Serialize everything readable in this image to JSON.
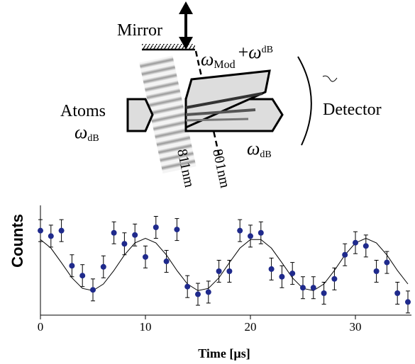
{
  "diagram": {
    "mirror": "Mirror",
    "atoms": "Atoms",
    "omega": "ω",
    "db": "dB",
    "mod": "Mod",
    "plus": "+",
    "detector": "Detector",
    "wavelength_1": "811nm",
    "wavelength_2": "801nm"
  },
  "chart_data": {
    "type": "scatter",
    "xlabel": "Time [µs]",
    "ylabel": "Counts",
    "xlim": [
      0,
      35
    ],
    "xticks": [
      0,
      10,
      20,
      30
    ],
    "ylim": [
      0,
      10
    ],
    "color": "#1f2a8c",
    "x": [
      0,
      1,
      2,
      3,
      4,
      5,
      6,
      7,
      8,
      9,
      10,
      11,
      12,
      13,
      14,
      15,
      16,
      17,
      18,
      19,
      20,
      21,
      22,
      23,
      24,
      25,
      26,
      27,
      28,
      29,
      30,
      31,
      32,
      33,
      34,
      35
    ],
    "values": [
      7.7,
      7.2,
      7.7,
      4.5,
      3.6,
      2.3,
      4.4,
      7.5,
      6.5,
      7.3,
      5.3,
      8.0,
      4.9,
      7.8,
      2.6,
      1.9,
      2.1,
      4.0,
      4.0,
      7.7,
      7.2,
      7.5,
      4.2,
      3.5,
      3.8,
      2.5,
      2.5,
      2.0,
      3.3,
      5.5,
      6.6,
      6.3,
      4.0,
      4.8,
      2.0,
      1.2
    ],
    "errors": [
      1.0,
      1.0,
      1.0,
      1.0,
      1.0,
      1.0,
      1.0,
      1.0,
      1.0,
      1.0,
      1.0,
      1.0,
      1.0,
      1.0,
      1.0,
      1.0,
      1.0,
      1.0,
      1.0,
      1.0,
      1.0,
      1.0,
      1.0,
      1.0,
      1.0,
      1.0,
      1.0,
      1.0,
      1.0,
      1.0,
      1.0,
      1.0,
      1.0,
      1.0,
      1.0,
      1.0
    ],
    "fit": {
      "x": [
        0,
        1,
        2,
        3,
        4,
        5,
        6,
        7,
        8,
        9,
        10,
        11,
        12,
        13,
        14,
        15,
        16,
        17,
        18,
        19,
        20,
        21,
        22,
        23,
        24,
        25,
        26,
        27,
        28,
        29,
        30,
        31,
        32,
        33,
        34,
        35
      ],
      "values": [
        6.89,
        6.1,
        4.78,
        3.4,
        2.44,
        2.23,
        2.84,
        4.07,
        5.48,
        6.58,
        7.0,
        6.58,
        5.48,
        4.07,
        2.84,
        2.23,
        2.44,
        3.4,
        4.78,
        6.1,
        6.89,
        6.89,
        6.1,
        4.78,
        3.4,
        2.44,
        2.23,
        2.84,
        4.07,
        5.48,
        6.58,
        7.0,
        6.58,
        5.48,
        4.07,
        2.84
      ]
    }
  }
}
